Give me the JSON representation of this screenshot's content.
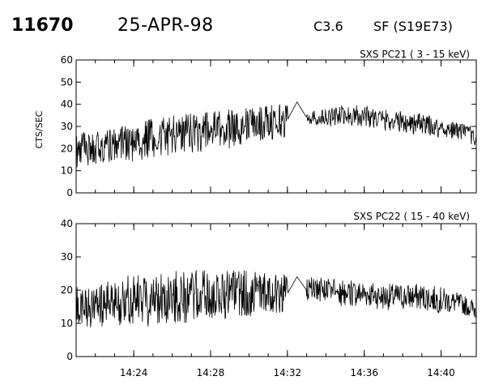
{
  "header": {
    "event_id": "11670",
    "date": "25-APR-98",
    "flare_class": "C3.6",
    "location": "SF (S19E73)"
  },
  "chart_data": [
    {
      "type": "line",
      "title": "SXS PC21  (  3 - 15 keV)",
      "ylabel": "CTS/SEC",
      "xlabel": "",
      "xlim": [
        "14:21:00",
        "14:41:50"
      ],
      "ylim": [
        0,
        60
      ],
      "yticks": [
        0,
        10,
        20,
        30,
        40,
        50,
        60
      ],
      "xticks": [
        "14:24",
        "14:28",
        "14:32",
        "14:36",
        "14:40"
      ],
      "series": [
        {
          "x": [
            "14:21:00",
            "14:22:00",
            "14:23:00",
            "14:24:00",
            "14:25:00",
            "14:26:00",
            "14:27:00",
            "14:28:00",
            "14:29:00",
            "14:30:00",
            "14:31:00",
            "14:32:00",
            "14:32:30",
            "14:33:00",
            "14:34:00",
            "14:35:00",
            "14:36:00",
            "14:37:00",
            "14:38:00",
            "14:39:00",
            "14:40:00",
            "14:41:00",
            "14:41:50"
          ],
          "values": [
            19,
            21,
            22,
            23,
            25,
            26,
            27,
            28,
            29,
            31,
            32,
            33,
            41,
            34,
            34,
            35,
            35,
            33,
            32,
            31,
            29,
            28,
            25
          ],
          "noise": [
            8,
            8,
            8,
            9,
            9,
            9,
            9,
            9,
            9,
            8,
            8,
            8,
            0,
            3,
            4,
            5,
            5,
            5,
            5,
            5,
            4,
            4,
            4
          ]
        }
      ]
    },
    {
      "type": "line",
      "title": "SXS PC22  ( 15 - 40 keV)",
      "ylabel": "",
      "xlabel": "",
      "xlim": [
        "14:21:00",
        "14:41:50"
      ],
      "ylim": [
        0,
        40
      ],
      "yticks": [
        0,
        10,
        20,
        30,
        40
      ],
      "xticks": [
        "14:24",
        "14:28",
        "14:32",
        "14:36",
        "14:40"
      ],
      "series": [
        {
          "x": [
            "14:21:00",
            "14:22:00",
            "14:23:00",
            "14:24:00",
            "14:25:00",
            "14:26:00",
            "14:27:00",
            "14:28:00",
            "14:29:00",
            "14:30:00",
            "14:31:00",
            "14:32:00",
            "14:32:30",
            "14:33:00",
            "14:34:00",
            "14:35:00",
            "14:36:00",
            "14:37:00",
            "14:38:00",
            "14:39:00",
            "14:40:00",
            "14:41:00",
            "14:41:50"
          ],
          "values": [
            14,
            15,
            16,
            17,
            17,
            18,
            18,
            18,
            19,
            19,
            19,
            19,
            24,
            20,
            20,
            19,
            19,
            18,
            18,
            18,
            17,
            16,
            14
          ],
          "noise": [
            7,
            7,
            7,
            8,
            8,
            8,
            8,
            8,
            7,
            7,
            6,
            6,
            0,
            4,
            4,
            4,
            4,
            4,
            4,
            4,
            4,
            3,
            3
          ]
        }
      ]
    }
  ]
}
